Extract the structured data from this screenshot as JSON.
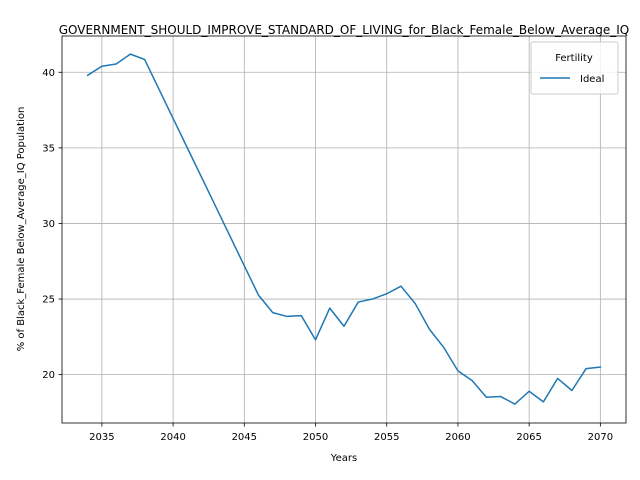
{
  "chart_data": {
    "type": "line",
    "title": "GOVERNMENT_SHOULD_IMPROVE_STANDARD_OF_LIVING_for_Black_Female_Below_Average_IQ",
    "xlabel": "Years",
    "ylabel": "% of Black_Female Below_Average_IQ Population",
    "xlim": [
      2032.2,
      2071.8
    ],
    "ylim": [
      16.8,
      42.4
    ],
    "xticks": [
      2035,
      2040,
      2045,
      2050,
      2055,
      2060,
      2065,
      2070
    ],
    "yticks": [
      20,
      25,
      30,
      35,
      40
    ],
    "grid": true,
    "legend": {
      "title": "Fertility",
      "position": "top-right"
    },
    "series": [
      {
        "name": "Ideal",
        "color": "#1f77b4",
        "x": [
          2034,
          2035,
          2036,
          2037,
          2038,
          2039,
          2040,
          2041,
          2042,
          2043,
          2044,
          2045,
          2046,
          2047,
          2048,
          2049,
          2050,
          2051,
          2052,
          2053,
          2054,
          2055,
          2056,
          2057,
          2058,
          2059,
          2060,
          2061,
          2062,
          2063,
          2064,
          2065,
          2066,
          2067,
          2068,
          2069,
          2070
        ],
        "values": [
          39.8,
          40.4,
          40.55,
          41.2,
          40.85,
          38.9,
          36.95,
          35.0,
          33.05,
          31.1,
          29.15,
          27.2,
          25.25,
          24.1,
          23.85,
          23.9,
          22.3,
          24.4,
          23.2,
          24.8,
          25.0,
          25.35,
          25.85,
          24.7,
          23.0,
          21.8,
          20.25,
          19.6,
          18.5,
          18.55,
          18.05,
          18.9,
          18.2,
          19.75,
          18.95,
          20.4,
          20.5
        ]
      }
    ]
  }
}
